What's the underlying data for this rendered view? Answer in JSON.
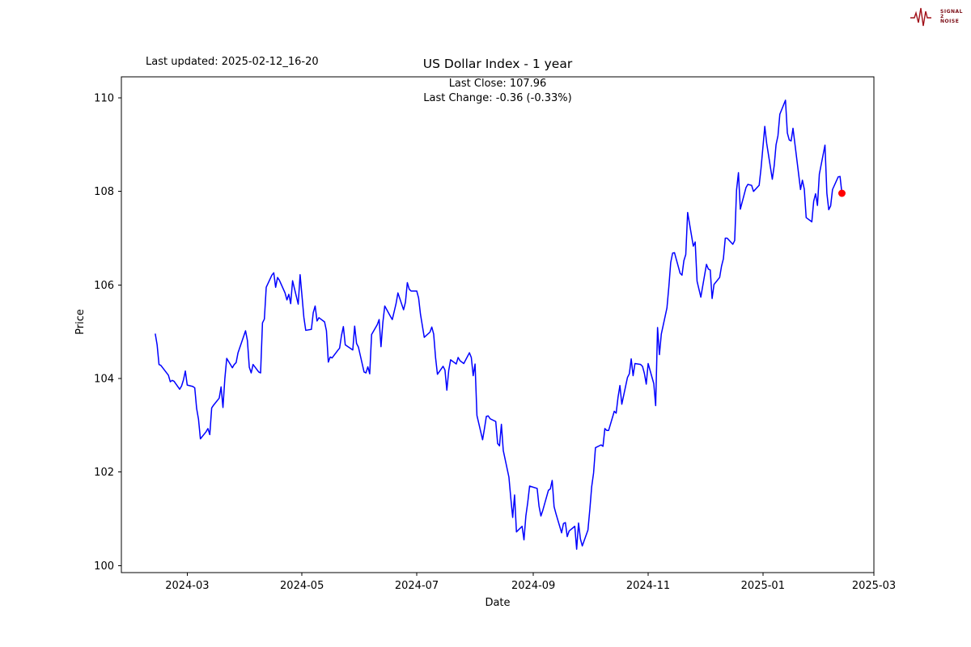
{
  "page": {
    "last_updated": "Last updated: 2025-02-12_16-20",
    "title": "US Dollar Index - 1 year",
    "subtitle_close": "Last Close: 107.96",
    "subtitle_change": "Last Change: -0.36 (-0.33%)",
    "xlabel": "Date",
    "ylabel": "Price"
  },
  "logo": {
    "line1": "SIGNAL",
    "line2": "2",
    "line3": "NOISE",
    "color": "#a01018"
  },
  "chart_data": {
    "type": "line",
    "title": "US Dollar Index - 1 year",
    "xlabel": "Date",
    "ylabel": "Price",
    "last_close": 107.96,
    "last_change": -0.36,
    "last_change_pct": -0.33,
    "line_color": "#0000ff",
    "marker_color": "#ff0000",
    "grid": false,
    "legend": "none",
    "x_domain": [
      "2024-01-26",
      "2025-03-01"
    ],
    "ylim": [
      99.85,
      110.45
    ],
    "x_ticks": [
      "2024-03",
      "2024-05",
      "2024-07",
      "2024-09",
      "2024-11",
      "2025-01",
      "2025-03"
    ],
    "y_ticks": [
      100,
      102,
      104,
      106,
      108,
      110
    ],
    "series": [
      {
        "name": "US Dollar Index",
        "points": [
          [
            "2024-02-13",
            104.96
          ],
          [
            "2024-02-14",
            104.72
          ],
          [
            "2024-02-15",
            104.3
          ],
          [
            "2024-02-16",
            104.28
          ],
          [
            "2024-02-20",
            104.07
          ],
          [
            "2024-02-21",
            103.93
          ],
          [
            "2024-02-22",
            103.96
          ],
          [
            "2024-02-23",
            103.94
          ],
          [
            "2024-02-26",
            103.77
          ],
          [
            "2024-02-27",
            103.84
          ],
          [
            "2024-02-28",
            103.97
          ],
          [
            "2024-02-29",
            104.16
          ],
          [
            "2024-03-01",
            103.86
          ],
          [
            "2024-03-04",
            103.83
          ],
          [
            "2024-03-05",
            103.8
          ],
          [
            "2024-03-06",
            103.36
          ],
          [
            "2024-03-07",
            103.13
          ],
          [
            "2024-03-08",
            102.71
          ],
          [
            "2024-03-11",
            102.86
          ],
          [
            "2024-03-12",
            102.93
          ],
          [
            "2024-03-13",
            102.8
          ],
          [
            "2024-03-14",
            103.37
          ],
          [
            "2024-03-15",
            103.43
          ],
          [
            "2024-03-18",
            103.58
          ],
          [
            "2024-03-19",
            103.82
          ],
          [
            "2024-03-20",
            103.38
          ],
          [
            "2024-03-21",
            104.0
          ],
          [
            "2024-03-22",
            104.43
          ],
          [
            "2024-03-25",
            104.23
          ],
          [
            "2024-03-26",
            104.3
          ],
          [
            "2024-03-27",
            104.34
          ],
          [
            "2024-03-28",
            104.55
          ],
          [
            "2024-04-01",
            105.02
          ],
          [
            "2024-04-02",
            104.81
          ],
          [
            "2024-04-03",
            104.24
          ],
          [
            "2024-04-04",
            104.12
          ],
          [
            "2024-04-05",
            104.3
          ],
          [
            "2024-04-08",
            104.14
          ],
          [
            "2024-04-09",
            104.12
          ],
          [
            "2024-04-10",
            105.19
          ],
          [
            "2024-04-11",
            105.27
          ],
          [
            "2024-04-12",
            105.95
          ],
          [
            "2024-04-15",
            106.21
          ],
          [
            "2024-04-16",
            106.26
          ],
          [
            "2024-04-17",
            105.95
          ],
          [
            "2024-04-18",
            106.16
          ],
          [
            "2024-04-19",
            106.1
          ],
          [
            "2024-04-22",
            105.83
          ],
          [
            "2024-04-23",
            105.68
          ],
          [
            "2024-04-24",
            105.8
          ],
          [
            "2024-04-25",
            105.6
          ],
          [
            "2024-04-26",
            106.09
          ],
          [
            "2024-04-29",
            105.59
          ],
          [
            "2024-04-30",
            106.22
          ],
          [
            "2024-05-01",
            105.77
          ],
          [
            "2024-05-02",
            105.31
          ],
          [
            "2024-05-03",
            105.03
          ],
          [
            "2024-05-06",
            105.05
          ],
          [
            "2024-05-07",
            105.41
          ],
          [
            "2024-05-08",
            105.55
          ],
          [
            "2024-05-09",
            105.23
          ],
          [
            "2024-05-10",
            105.3
          ],
          [
            "2024-05-13",
            105.21
          ],
          [
            "2024-05-14",
            105.02
          ],
          [
            "2024-05-15",
            104.35
          ],
          [
            "2024-05-16",
            104.46
          ],
          [
            "2024-05-17",
            104.44
          ],
          [
            "2024-05-20",
            104.6
          ],
          [
            "2024-05-21",
            104.65
          ],
          [
            "2024-05-22",
            104.92
          ],
          [
            "2024-05-23",
            105.11
          ],
          [
            "2024-05-24",
            104.72
          ],
          [
            "2024-05-28",
            104.61
          ],
          [
            "2024-05-29",
            105.12
          ],
          [
            "2024-05-30",
            104.75
          ],
          [
            "2024-05-31",
            104.67
          ],
          [
            "2024-06-03",
            104.14
          ],
          [
            "2024-06-04",
            104.12
          ],
          [
            "2024-06-05",
            104.25
          ],
          [
            "2024-06-06",
            104.1
          ],
          [
            "2024-06-07",
            104.94
          ],
          [
            "2024-06-10",
            105.15
          ],
          [
            "2024-06-11",
            105.26
          ],
          [
            "2024-06-12",
            104.68
          ],
          [
            "2024-06-13",
            105.2
          ],
          [
            "2024-06-14",
            105.55
          ],
          [
            "2024-06-17",
            105.33
          ],
          [
            "2024-06-18",
            105.26
          ],
          [
            "2024-06-20",
            105.6
          ],
          [
            "2024-06-21",
            105.83
          ],
          [
            "2024-06-24",
            105.47
          ],
          [
            "2024-06-25",
            105.63
          ],
          [
            "2024-06-26",
            106.05
          ],
          [
            "2024-06-27",
            105.91
          ],
          [
            "2024-06-28",
            105.87
          ],
          [
            "2024-07-01",
            105.87
          ],
          [
            "2024-07-02",
            105.72
          ],
          [
            "2024-07-03",
            105.37
          ],
          [
            "2024-07-05",
            104.88
          ],
          [
            "2024-07-08",
            104.99
          ],
          [
            "2024-07-09",
            105.1
          ],
          [
            "2024-07-10",
            104.95
          ],
          [
            "2024-07-11",
            104.45
          ],
          [
            "2024-07-12",
            104.09
          ],
          [
            "2024-07-15",
            104.26
          ],
          [
            "2024-07-16",
            104.18
          ],
          [
            "2024-07-17",
            103.75
          ],
          [
            "2024-07-18",
            104.17
          ],
          [
            "2024-07-19",
            104.4
          ],
          [
            "2024-07-22",
            104.31
          ],
          [
            "2024-07-23",
            104.45
          ],
          [
            "2024-07-24",
            104.38
          ],
          [
            "2024-07-25",
            104.35
          ],
          [
            "2024-07-26",
            104.32
          ],
          [
            "2024-07-29",
            104.55
          ],
          [
            "2024-07-30",
            104.45
          ],
          [
            "2024-07-31",
            104.06
          ],
          [
            "2024-08-01",
            104.31
          ],
          [
            "2024-08-02",
            103.21
          ],
          [
            "2024-08-05",
            102.69
          ],
          [
            "2024-08-06",
            102.93
          ],
          [
            "2024-08-07",
            103.19
          ],
          [
            "2024-08-08",
            103.2
          ],
          [
            "2024-08-09",
            103.14
          ],
          [
            "2024-08-12",
            103.08
          ],
          [
            "2024-08-13",
            102.61
          ],
          [
            "2024-08-14",
            102.56
          ],
          [
            "2024-08-15",
            103.02
          ],
          [
            "2024-08-16",
            102.46
          ],
          [
            "2024-08-19",
            101.89
          ],
          [
            "2024-08-20",
            101.44
          ],
          [
            "2024-08-21",
            101.03
          ],
          [
            "2024-08-22",
            101.51
          ],
          [
            "2024-08-23",
            100.72
          ],
          [
            "2024-08-26",
            100.84
          ],
          [
            "2024-08-27",
            100.55
          ],
          [
            "2024-08-28",
            101.06
          ],
          [
            "2024-08-29",
            101.35
          ],
          [
            "2024-08-30",
            101.7
          ],
          [
            "2024-09-03",
            101.65
          ],
          [
            "2024-09-04",
            101.27
          ],
          [
            "2024-09-05",
            101.06
          ],
          [
            "2024-09-06",
            101.18
          ],
          [
            "2024-09-09",
            101.61
          ],
          [
            "2024-09-10",
            101.64
          ],
          [
            "2024-09-11",
            101.82
          ],
          [
            "2024-09-12",
            101.26
          ],
          [
            "2024-09-13",
            101.11
          ],
          [
            "2024-09-16",
            100.7
          ],
          [
            "2024-09-17",
            100.9
          ],
          [
            "2024-09-18",
            100.92
          ],
          [
            "2024-09-19",
            100.62
          ],
          [
            "2024-09-20",
            100.74
          ],
          [
            "2024-09-23",
            100.84
          ],
          [
            "2024-09-24",
            100.35
          ],
          [
            "2024-09-25",
            100.91
          ],
          [
            "2024-09-26",
            100.57
          ],
          [
            "2024-09-27",
            100.42
          ],
          [
            "2024-09-30",
            100.76
          ],
          [
            "2024-10-01",
            101.2
          ],
          [
            "2024-10-02",
            101.69
          ],
          [
            "2024-10-03",
            101.98
          ],
          [
            "2024-10-04",
            102.52
          ],
          [
            "2024-10-07",
            102.58
          ],
          [
            "2024-10-08",
            102.55
          ],
          [
            "2024-10-09",
            102.93
          ],
          [
            "2024-10-10",
            102.89
          ],
          [
            "2024-10-11",
            102.89
          ],
          [
            "2024-10-14",
            103.3
          ],
          [
            "2024-10-15",
            103.26
          ],
          [
            "2024-10-16",
            103.6
          ],
          [
            "2024-10-17",
            103.85
          ],
          [
            "2024-10-18",
            103.45
          ],
          [
            "2024-10-21",
            104.02
          ],
          [
            "2024-10-22",
            104.1
          ],
          [
            "2024-10-23",
            104.42
          ],
          [
            "2024-10-24",
            104.06
          ],
          [
            "2024-10-25",
            104.32
          ],
          [
            "2024-10-28",
            104.3
          ],
          [
            "2024-10-29",
            104.26
          ],
          [
            "2024-10-30",
            104.11
          ],
          [
            "2024-10-31",
            103.88
          ],
          [
            "2024-11-01",
            104.32
          ],
          [
            "2024-11-04",
            103.89
          ],
          [
            "2024-11-05",
            103.42
          ],
          [
            "2024-11-06",
            105.09
          ],
          [
            "2024-11-07",
            104.51
          ],
          [
            "2024-11-08",
            104.95
          ],
          [
            "2024-11-11",
            105.51
          ],
          [
            "2024-11-12",
            105.96
          ],
          [
            "2024-11-13",
            106.48
          ],
          [
            "2024-11-14",
            106.68
          ],
          [
            "2024-11-15",
            106.69
          ],
          [
            "2024-11-18",
            106.25
          ],
          [
            "2024-11-19",
            106.21
          ],
          [
            "2024-11-20",
            106.52
          ],
          [
            "2024-11-21",
            106.65
          ],
          [
            "2024-11-22",
            107.55
          ],
          [
            "2024-11-25",
            106.83
          ],
          [
            "2024-11-26",
            106.92
          ],
          [
            "2024-11-27",
            106.08
          ],
          [
            "2024-11-29",
            105.74
          ],
          [
            "2024-12-02",
            106.44
          ],
          [
            "2024-12-03",
            106.34
          ],
          [
            "2024-12-04",
            106.32
          ],
          [
            "2024-12-05",
            105.71
          ],
          [
            "2024-12-06",
            106.01
          ],
          [
            "2024-12-09",
            106.16
          ],
          [
            "2024-12-10",
            106.4
          ],
          [
            "2024-12-11",
            106.56
          ],
          [
            "2024-12-12",
            107.0
          ],
          [
            "2024-12-13",
            107.0
          ],
          [
            "2024-12-16",
            106.87
          ],
          [
            "2024-12-17",
            106.95
          ],
          [
            "2024-12-18",
            108.03
          ],
          [
            "2024-12-19",
            108.4
          ],
          [
            "2024-12-20",
            107.62
          ],
          [
            "2024-12-23",
            108.08
          ],
          [
            "2024-12-24",
            108.15
          ],
          [
            "2024-12-26",
            108.13
          ],
          [
            "2024-12-27",
            108.0
          ],
          [
            "2024-12-30",
            108.13
          ],
          [
            "2024-12-31",
            108.49
          ],
          [
            "2025-01-02",
            109.39
          ],
          [
            "2025-01-03",
            109.03
          ],
          [
            "2025-01-06",
            108.26
          ],
          [
            "2025-01-07",
            108.55
          ],
          [
            "2025-01-08",
            109.0
          ],
          [
            "2025-01-09",
            109.19
          ],
          [
            "2025-01-10",
            109.65
          ],
          [
            "2025-01-13",
            109.95
          ],
          [
            "2025-01-14",
            109.25
          ],
          [
            "2025-01-15",
            109.1
          ],
          [
            "2025-01-16",
            109.08
          ],
          [
            "2025-01-17",
            109.35
          ],
          [
            "2025-01-21",
            108.04
          ],
          [
            "2025-01-22",
            108.24
          ],
          [
            "2025-01-23",
            108.05
          ],
          [
            "2025-01-24",
            107.44
          ],
          [
            "2025-01-27",
            107.35
          ],
          [
            "2025-01-28",
            107.79
          ],
          [
            "2025-01-29",
            107.95
          ],
          [
            "2025-01-30",
            107.7
          ],
          [
            "2025-01-31",
            108.37
          ],
          [
            "2025-02-03",
            108.99
          ],
          [
            "2025-02-04",
            107.96
          ],
          [
            "2025-02-05",
            107.61
          ],
          [
            "2025-02-06",
            107.69
          ],
          [
            "2025-02-07",
            108.04
          ],
          [
            "2025-02-10",
            108.31
          ],
          [
            "2025-02-11",
            108.32
          ],
          [
            "2025-02-12",
            107.96
          ]
        ]
      }
    ]
  }
}
